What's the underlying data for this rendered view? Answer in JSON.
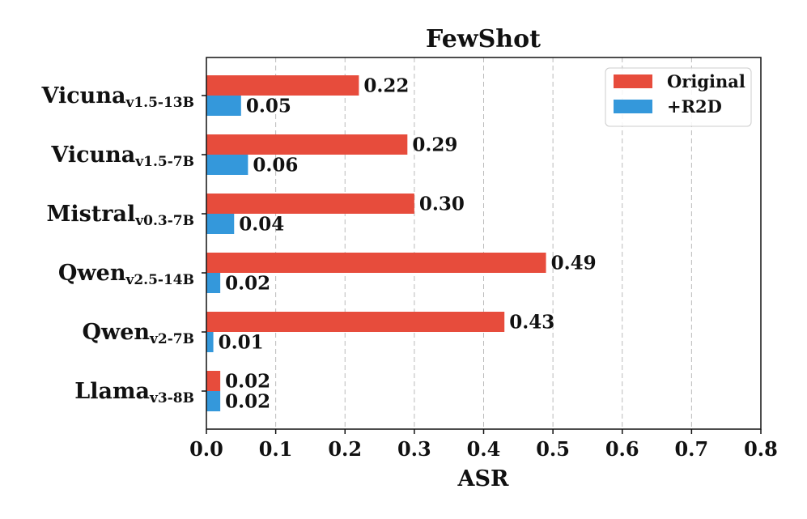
{
  "chart_data": {
    "type": "bar",
    "orientation": "horizontal",
    "title": "FewShot",
    "xlabel": "ASR",
    "ylabel": "",
    "xlim": [
      0,
      0.8
    ],
    "xticks": [
      "0.0",
      "0.1",
      "0.2",
      "0.3",
      "0.4",
      "0.5",
      "0.6",
      "0.7",
      "0.8"
    ],
    "grid": "x-dashed",
    "legend_position": "top-right",
    "categories": [
      {
        "name": "Vicuna",
        "sub": "v1.5-13B"
      },
      {
        "name": "Vicuna",
        "sub": "v1.5-7B"
      },
      {
        "name": "Mistral",
        "sub": "v0.3-7B"
      },
      {
        "name": "Qwen",
        "sub": "v2.5-14B"
      },
      {
        "name": "Qwen",
        "sub": "v2-7B"
      },
      {
        "name": "Llama",
        "sub": "v3-8B"
      }
    ],
    "series": [
      {
        "name": "Original",
        "color": "#e74c3c",
        "values": [
          0.22,
          0.29,
          0.3,
          0.49,
          0.43,
          0.02
        ],
        "labels": [
          "0.22",
          "0.29",
          "0.30",
          "0.49",
          "0.43",
          "0.02"
        ]
      },
      {
        "name": "+R2D",
        "color": "#3498db",
        "values": [
          0.05,
          0.06,
          0.04,
          0.02,
          0.01,
          0.02
        ],
        "labels": [
          "0.05",
          "0.06",
          "0.04",
          "0.02",
          "0.01",
          "0.02"
        ]
      }
    ]
  }
}
